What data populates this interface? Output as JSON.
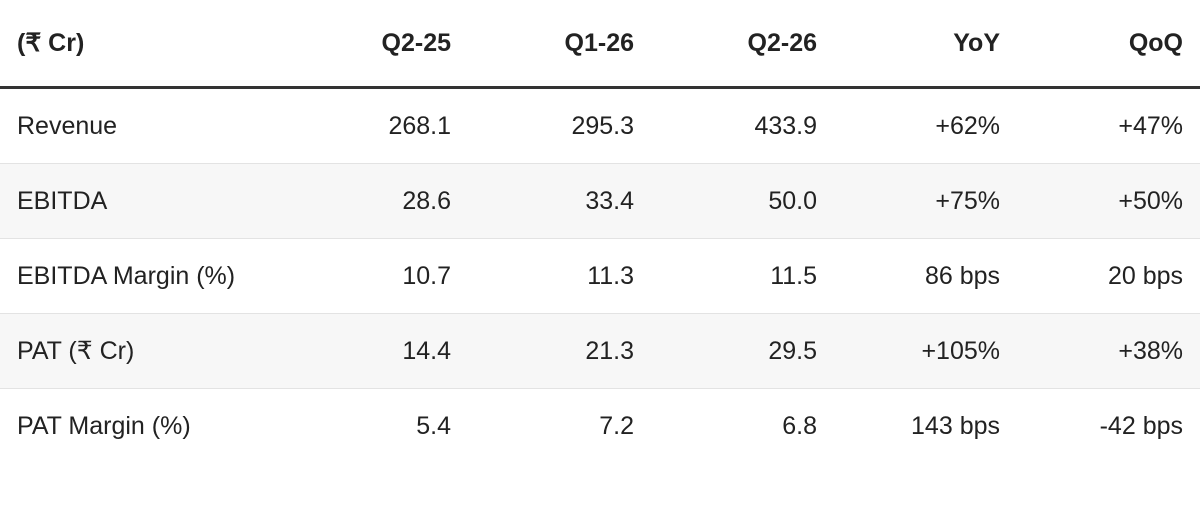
{
  "table": {
    "header": [
      "(₹ Cr)",
      "Q2-25",
      "Q1-26",
      "Q2-26",
      "YoY",
      "QoQ"
    ],
    "rows": [
      [
        "Revenue",
        "268.1",
        "295.3",
        "433.9",
        "+62%",
        "+47%"
      ],
      [
        "EBITDA",
        "28.6",
        "33.4",
        "50.0",
        "+75%",
        "+50%"
      ],
      [
        "EBITDA Margin (%)",
        "10.7",
        "11.3",
        "11.5",
        "86 bps",
        "20 bps"
      ],
      [
        "PAT (₹ Cr)",
        "14.4",
        "21.3",
        "29.5",
        "+105%",
        "+38%"
      ],
      [
        "PAT Margin (%)",
        "5.4",
        "7.2",
        "6.8",
        "143 bps",
        "-42 bps"
      ]
    ]
  }
}
